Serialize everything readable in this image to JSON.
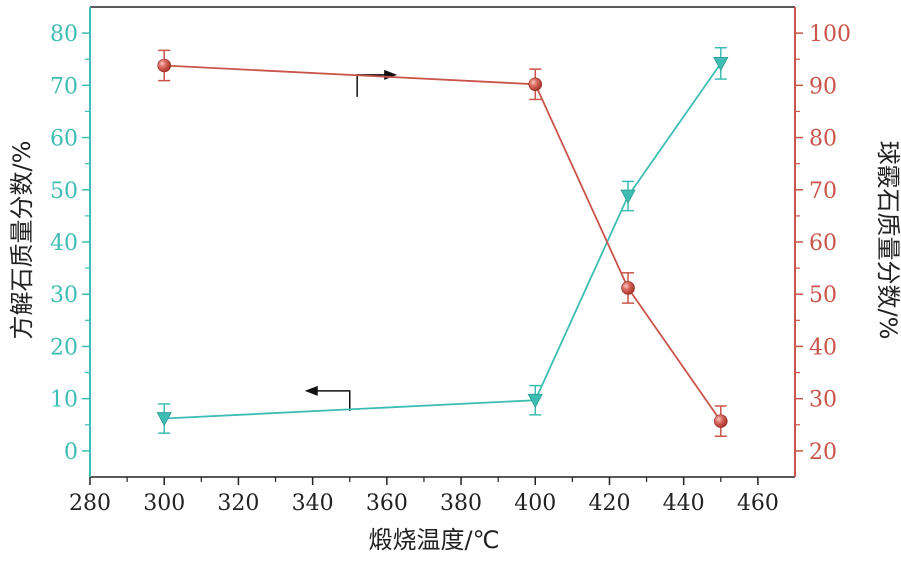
{
  "chart_data": {
    "type": "line",
    "title": "",
    "xlabel": "煅烧温度/℃",
    "ylabel_left": "方解石质量分数/%",
    "ylabel_right": "球霰石质量分数/%",
    "xlim": [
      280,
      470
    ],
    "xticks": [
      280,
      300,
      320,
      340,
      360,
      380,
      400,
      420,
      440,
      460
    ],
    "ylim_left": [
      -5,
      85
    ],
    "yticks_left": [
      0,
      10,
      20,
      30,
      40,
      50,
      60,
      70,
      80
    ],
    "ylim_right": [
      15,
      105
    ],
    "yticks_right": [
      20,
      30,
      40,
      50,
      60,
      70,
      80,
      90,
      100
    ],
    "grid": false,
    "series": [
      {
        "axis": "left",
        "color": "#3dbdb3",
        "marker": "triangle-down",
        "x": [
          300,
          400,
          425,
          450
        ],
        "y": [
          6.2,
          9.7,
          48.8,
          74.2
        ],
        "err": [
          2.8,
          2.8,
          2.8,
          3.0
        ]
      },
      {
        "axis": "right",
        "color": "#c9544a",
        "marker": "sphere",
        "x": [
          300,
          400,
          425,
          450
        ],
        "y": [
          93.8,
          90.2,
          51.2,
          25.7
        ],
        "err": [
          2.9,
          2.9,
          2.9,
          2.9
        ]
      }
    ],
    "annotations": [
      {
        "type": "arrow",
        "direction": "right",
        "target_axis": "right",
        "x": 352,
        "y_left": 72
      },
      {
        "type": "arrow",
        "direction": "left",
        "target_axis": "left",
        "x": 350,
        "y_left": 11.5
      }
    ]
  }
}
